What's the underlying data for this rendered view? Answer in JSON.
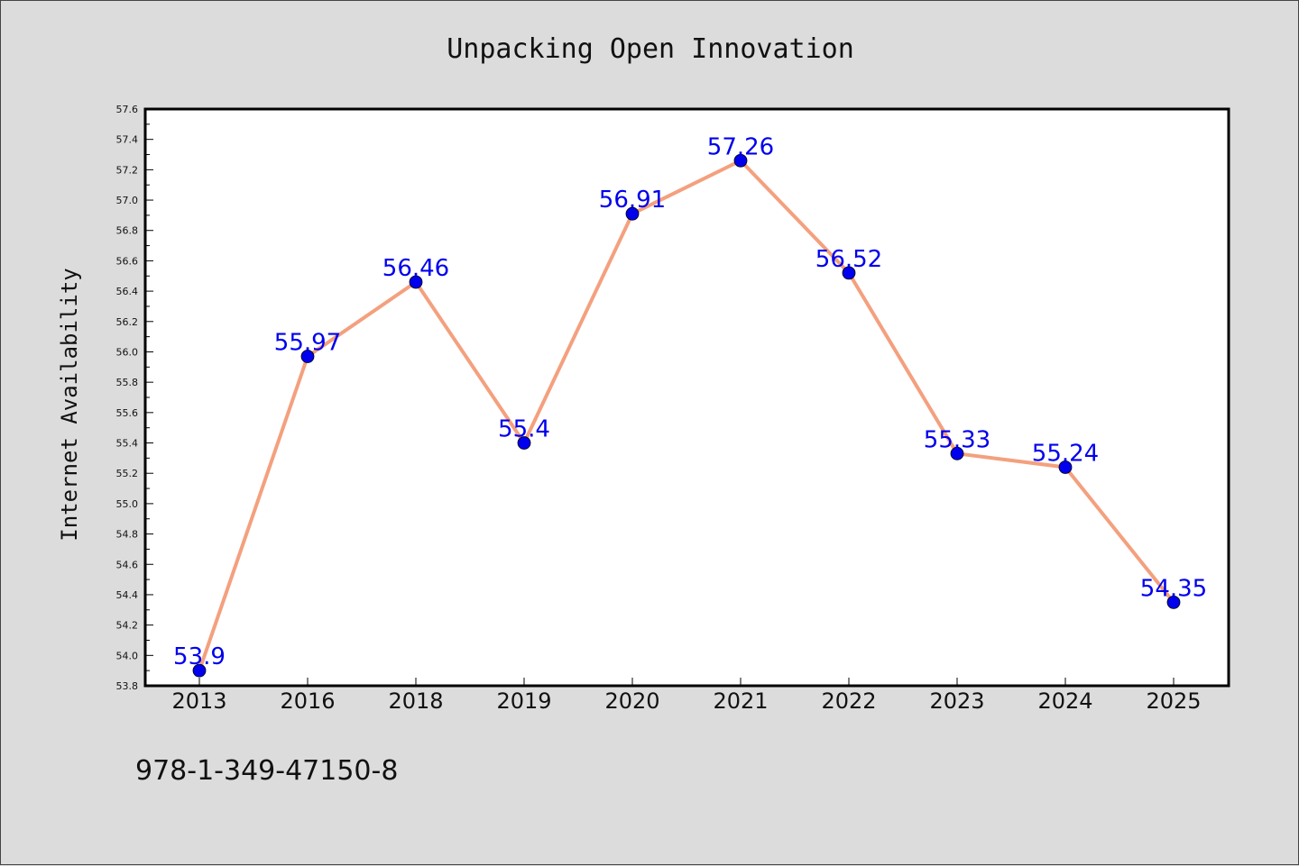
{
  "chart_data": {
    "type": "line",
    "title": "Unpacking Open Innovation",
    "xlabel": "",
    "ylabel": "Internet Availability",
    "categories": [
      "2013",
      "2016",
      "2018",
      "2019",
      "2020",
      "2021",
      "2022",
      "2023",
      "2024",
      "2025"
    ],
    "series": [
      {
        "values": [
          53.9,
          55.97,
          56.46,
          55.4,
          56.91,
          57.26,
          56.52,
          55.33,
          55.24,
          54.35
        ],
        "labels": [
          "53.9",
          "55.97",
          "56.46",
          "55.4",
          "56.91",
          "57.26",
          "56.52",
          "55.33",
          "55.24",
          "54.35"
        ]
      }
    ],
    "ylim": [
      53.8,
      57.6
    ],
    "yticks": [
      "53.8",
      "54.0",
      "54.2",
      "54.4",
      "54.6",
      "54.8",
      "55.0",
      "55.2",
      "55.4",
      "55.6",
      "55.8",
      "56.0",
      "56.2",
      "56.4",
      "56.6",
      "56.8",
      "57.0",
      "57.2",
      "57.4",
      "57.6"
    ],
    "grid": false,
    "colors": {
      "line": "#f4a07e",
      "marker": "#0000ee",
      "label": "#0000ee",
      "background": "#dcdcdc",
      "plot_background": "#ffffff"
    }
  },
  "footer_text": "978-1-349-47150-8"
}
